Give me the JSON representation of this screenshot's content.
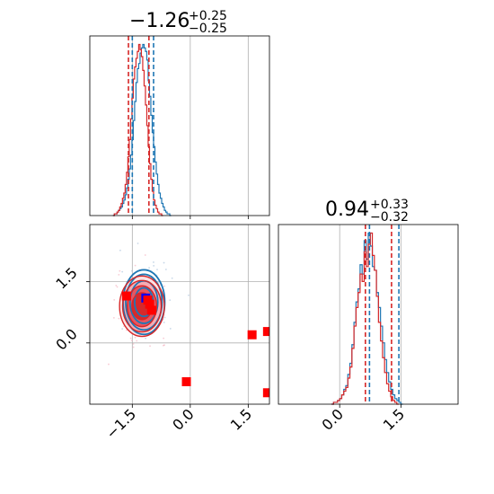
{
  "chart_data": {
    "type": "corner",
    "parameters": [
      {
        "range": [
          -2.6,
          2.05
        ],
        "ticks": [
          -1.5,
          0.0,
          1.5
        ],
        "tick_labels": [
          "−1.5",
          "0.0",
          "1.5"
        ]
      },
      {
        "range": [
          -1.5,
          2.9
        ],
        "ticks": [
          0.0,
          1.5
        ],
        "tick_labels": [
          "0.0",
          "1.5"
        ]
      }
    ],
    "titles": [
      {
        "median": "−1.26",
        "plus": "+0.25",
        "minus": "−0.25"
      },
      {
        "median": "0.94",
        "plus": "+0.33",
        "minus": "−0.32"
      }
    ],
    "series": [
      {
        "name": "",
        "color": "#1f77b4",
        "quantiles": [
          [
            -1.5,
            -0.95
          ],
          [
            0.73,
            1.45
          ]
        ],
        "hist1": {
          "start": -2.0,
          "step": 0.035,
          "counts": [
            0,
            1,
            1,
            2,
            3,
            4,
            5,
            7,
            9,
            12,
            16,
            21,
            27,
            35,
            44,
            55,
            66,
            77,
            85,
            88,
            94,
            97,
            99,
            97,
            95,
            90,
            78,
            69,
            58,
            48,
            40,
            31,
            24,
            18,
            13,
            10,
            7,
            5,
            3,
            2,
            1,
            1,
            0
          ]
        },
        "hist2": {
          "start": -0.2,
          "step": 0.05,
          "counts": [
            0,
            1,
            1,
            2,
            3,
            5,
            8,
            10,
            16,
            22,
            32,
            44,
            55,
            62,
            75,
            70,
            88,
            78,
            92,
            85,
            74,
            72,
            60,
            52,
            42,
            33,
            24,
            17,
            12,
            8,
            5,
            3,
            2,
            1,
            0
          ]
        },
        "contour_center": [
          -1.2,
          1.0
        ],
        "contour_radii": [
          [
            0.24,
            0.35
          ],
          [
            0.36,
            0.52
          ],
          [
            0.47,
            0.68
          ],
          [
            0.54,
            0.79
          ]
        ]
      },
      {
        "name": "",
        "color": "#d62728",
        "quantiles": [
          [
            -1.6,
            -1.07
          ],
          [
            0.63,
            1.27
          ]
        ],
        "hist1": {
          "start": -2.0,
          "step": 0.035,
          "counts": [
            0,
            1,
            1,
            2,
            3,
            5,
            7,
            10,
            13,
            18,
            25,
            34,
            44,
            56,
            68,
            79,
            86,
            91,
            95,
            99,
            96,
            92,
            84,
            75,
            64,
            52,
            40,
            30,
            21,
            14,
            9,
            6,
            4,
            2,
            1,
            1,
            0
          ]
        },
        "hist2": {
          "start": -0.2,
          "step": 0.05,
          "counts": [
            0,
            1,
            1,
            2,
            3,
            5,
            7,
            9,
            14,
            20,
            30,
            42,
            52,
            60,
            70,
            66,
            82,
            74,
            86,
            92,
            80,
            72,
            58,
            44,
            34,
            25,
            17,
            11,
            7,
            4,
            2,
            1,
            0
          ]
        },
        "contour_center": [
          -1.25,
          0.9
        ],
        "contour_radii": [
          [
            0.26,
            0.33
          ],
          [
            0.38,
            0.5
          ],
          [
            0.5,
            0.63
          ],
          [
            0.58,
            0.74
          ]
        ]
      }
    ],
    "scatter_markers": [
      {
        "x": -1.65,
        "y": 1.15,
        "color": "#ff0000"
      },
      {
        "x": -1.05,
        "y": 0.95,
        "color": "#ff0000"
      },
      {
        "x": -1.0,
        "y": 0.8,
        "color": "#ff0000"
      },
      {
        "x": -1.15,
        "y": 1.1,
        "color": "#0000ff"
      },
      {
        "x": -1.1,
        "y": 1.05,
        "color": "#ff0000"
      },
      {
        "x": -0.1,
        "y": -0.95,
        "color": "#ff0000"
      },
      {
        "x": 1.6,
        "y": 0.2,
        "color": "#ff0000"
      },
      {
        "x": 2.0,
        "y": 0.28,
        "color": "#ff0000"
      },
      {
        "x": 2.0,
        "y": -1.22,
        "color": "#ff0000"
      }
    ],
    "grid": true,
    "legend": "none"
  }
}
